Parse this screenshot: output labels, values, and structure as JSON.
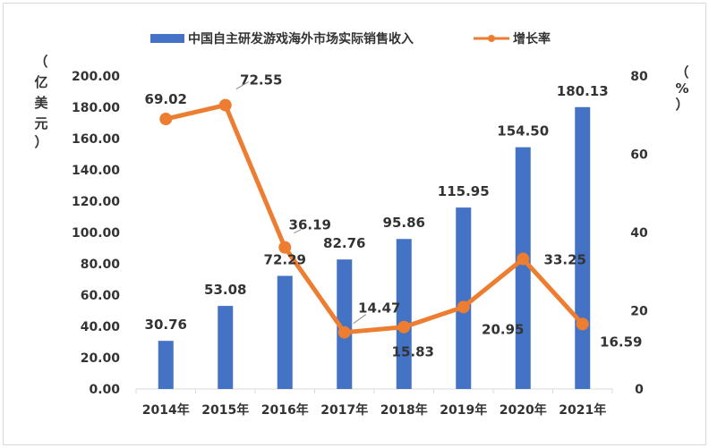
{
  "chart_data": {
    "type": "bar+line",
    "categories": [
      "2014年",
      "2015年",
      "2016年",
      "2017年",
      "2018年",
      "2019年",
      "2020年",
      "2021年"
    ],
    "series": [
      {
        "name": "中国自主研发游戏海外市场实际销售收入",
        "type": "bar",
        "axis": "left",
        "color": "#4472C4",
        "values": [
          30.76,
          53.08,
          72.29,
          82.76,
          95.86,
          115.95,
          154.5,
          180.13
        ],
        "labels": [
          "30.76",
          "53.08",
          "72.29",
          "82.76",
          "95.86",
          "115.95",
          "154.50",
          "180.13"
        ]
      },
      {
        "name": "增长率",
        "type": "line",
        "axis": "right",
        "color": "#ED7D31",
        "values": [
          69.02,
          72.55,
          36.19,
          14.47,
          15.83,
          20.95,
          33.25,
          16.59
        ],
        "labels": [
          "69.02",
          "72.55",
          "36.19",
          "14.47",
          "15.83",
          "20.95",
          "33.25",
          "16.59"
        ]
      }
    ],
    "y_left": {
      "range": [
        0,
        200
      ],
      "ticks": [
        "0.00",
        "20.00",
        "40.00",
        "60.00",
        "80.00",
        "100.00",
        "120.00",
        "140.00",
        "160.00",
        "180.00",
        "200.00"
      ],
      "unit_chars": [
        "（",
        "亿",
        "美",
        "元",
        "）"
      ]
    },
    "y_right": {
      "range": [
        0,
        80
      ],
      "ticks": [
        "0",
        "20",
        "40",
        "60",
        "80"
      ],
      "unit_chars": [
        "（",
        "%",
        "）"
      ]
    },
    "legend_position": "top-center"
  }
}
